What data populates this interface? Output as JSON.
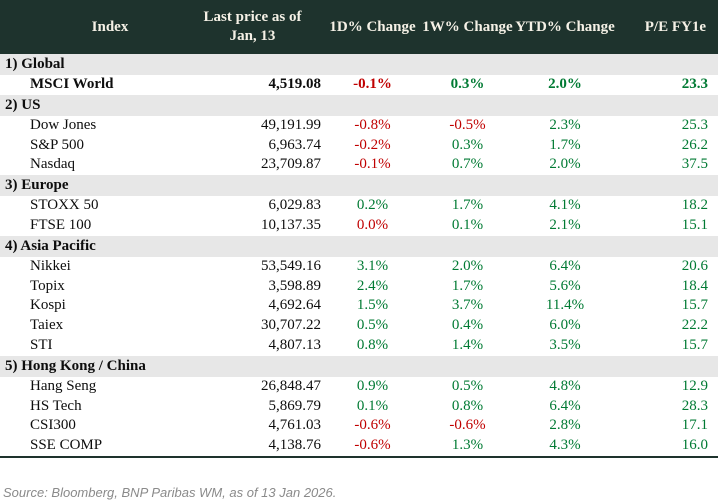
{
  "colors": {
    "header_bg": "#1e332d",
    "header_text": "#f5f1e6",
    "section_bg": "#e7e7e7",
    "positive_green": "#007a33",
    "negative_red": "#c00000",
    "body_text": "#0d0d0d",
    "source_text": "#8a8a8a"
  },
  "chart_data": {
    "type": "table",
    "columns": [
      "Index",
      "Last price as of Jan, 13",
      "1D% Change",
      "1W% Change",
      "YTD% Change",
      "P/E FY1e"
    ],
    "sections": [
      {
        "label": "1) Global",
        "rows": [
          {
            "name": "MSCI World",
            "bold": true,
            "price": "4,519.08",
            "d1": {
              "v": "-0.1%",
              "c": "red"
            },
            "w1": {
              "v": "0.3%",
              "c": "green"
            },
            "ytd": {
              "v": "2.0%",
              "c": "green"
            },
            "pe": {
              "v": "23.3",
              "c": "green"
            }
          }
        ]
      },
      {
        "label": "2) US",
        "rows": [
          {
            "name": "Dow Jones",
            "price": "49,191.99",
            "d1": {
              "v": "-0.8%",
              "c": "red"
            },
            "w1": {
              "v": "-0.5%",
              "c": "red"
            },
            "ytd": {
              "v": "2.3%",
              "c": "green"
            },
            "pe": {
              "v": "25.3",
              "c": "green"
            }
          },
          {
            "name": "S&P 500",
            "price": "6,963.74",
            "d1": {
              "v": "-0.2%",
              "c": "red"
            },
            "w1": {
              "v": "0.3%",
              "c": "green"
            },
            "ytd": {
              "v": "1.7%",
              "c": "green"
            },
            "pe": {
              "v": "26.2",
              "c": "green"
            }
          },
          {
            "name": "Nasdaq",
            "price": "23,709.87",
            "d1": {
              "v": "-0.1%",
              "c": "red"
            },
            "w1": {
              "v": "0.7%",
              "c": "green"
            },
            "ytd": {
              "v": "2.0%",
              "c": "green"
            },
            "pe": {
              "v": "37.5",
              "c": "green"
            }
          }
        ]
      },
      {
        "label": "3) Europe",
        "rows": [
          {
            "name": "STOXX 50",
            "price": "6,029.83",
            "d1": {
              "v": "0.2%",
              "c": "green"
            },
            "w1": {
              "v": "1.7%",
              "c": "green"
            },
            "ytd": {
              "v": "4.1%",
              "c": "green"
            },
            "pe": {
              "v": "18.2",
              "c": "green"
            }
          },
          {
            "name": "FTSE 100",
            "price": "10,137.35",
            "d1": {
              "v": "0.0%",
              "c": "red"
            },
            "w1": {
              "v": "0.1%",
              "c": "green"
            },
            "ytd": {
              "v": "2.1%",
              "c": "green"
            },
            "pe": {
              "v": "15.1",
              "c": "green"
            }
          }
        ]
      },
      {
        "label": "4) Asia Pacific",
        "rows": [
          {
            "name": "Nikkei",
            "price": "53,549.16",
            "d1": {
              "v": "3.1%",
              "c": "green"
            },
            "w1": {
              "v": "2.0%",
              "c": "green"
            },
            "ytd": {
              "v": "6.4%",
              "c": "green"
            },
            "pe": {
              "v": "20.6",
              "c": "green"
            }
          },
          {
            "name": "Topix",
            "price": "3,598.89",
            "d1": {
              "v": "2.4%",
              "c": "green"
            },
            "w1": {
              "v": "1.7%",
              "c": "green"
            },
            "ytd": {
              "v": "5.6%",
              "c": "green"
            },
            "pe": {
              "v": "18.4",
              "c": "green"
            }
          },
          {
            "name": "Kospi",
            "price": "4,692.64",
            "d1": {
              "v": "1.5%",
              "c": "green"
            },
            "w1": {
              "v": "3.7%",
              "c": "green"
            },
            "ytd": {
              "v": "11.4%",
              "c": "green"
            },
            "pe": {
              "v": "15.7",
              "c": "green"
            }
          },
          {
            "name": "Taiex",
            "price": "30,707.22",
            "d1": {
              "v": "0.5%",
              "c": "green"
            },
            "w1": {
              "v": "0.4%",
              "c": "green"
            },
            "ytd": {
              "v": "6.0%",
              "c": "green"
            },
            "pe": {
              "v": "22.2",
              "c": "green"
            }
          },
          {
            "name": "STI",
            "price": "4,807.13",
            "d1": {
              "v": "0.8%",
              "c": "green"
            },
            "w1": {
              "v": "1.4%",
              "c": "green"
            },
            "ytd": {
              "v": "3.5%",
              "c": "green"
            },
            "pe": {
              "v": "15.7",
              "c": "green"
            }
          }
        ]
      },
      {
        "label": "5) Hong Kong / China",
        "rows": [
          {
            "name": "Hang Seng",
            "price": "26,848.47",
            "d1": {
              "v": "0.9%",
              "c": "green"
            },
            "w1": {
              "v": "0.5%",
              "c": "green"
            },
            "ytd": {
              "v": "4.8%",
              "c": "green"
            },
            "pe": {
              "v": "12.9",
              "c": "green"
            }
          },
          {
            "name": "HS Tech",
            "price": "5,869.79",
            "d1": {
              "v": "0.1%",
              "c": "green"
            },
            "w1": {
              "v": "0.8%",
              "c": "green"
            },
            "ytd": {
              "v": "6.4%",
              "c": "green"
            },
            "pe": {
              "v": "28.3",
              "c": "green"
            }
          },
          {
            "name": "CSI300",
            "price": "4,761.03",
            "d1": {
              "v": "-0.6%",
              "c": "red"
            },
            "w1": {
              "v": "-0.6%",
              "c": "red"
            },
            "ytd": {
              "v": "2.8%",
              "c": "green"
            },
            "pe": {
              "v": "17.1",
              "c": "green"
            }
          },
          {
            "name": "SSE COMP",
            "price": "4,138.76",
            "d1": {
              "v": "-0.6%",
              "c": "red"
            },
            "w1": {
              "v": "1.3%",
              "c": "green"
            },
            "ytd": {
              "v": "4.3%",
              "c": "green"
            },
            "pe": {
              "v": "16.0",
              "c": "green"
            }
          }
        ]
      }
    ],
    "source": "Source: Bloomberg, BNP Paribas WM, as of 13 Jan 2026."
  }
}
